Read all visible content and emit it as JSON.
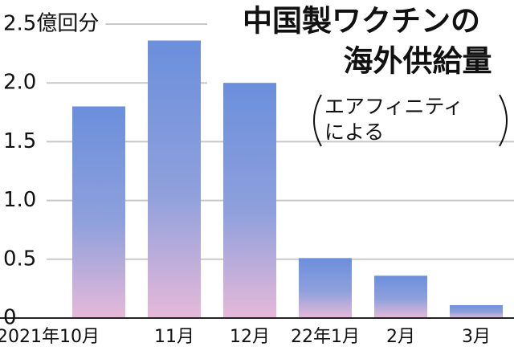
{
  "chart_data": {
    "type": "bar",
    "title_lines": [
      "中国製ワクチンの",
      "海外供給量"
    ],
    "source_lines": [
      "エアフィニティ",
      "による"
    ],
    "categories": [
      "2021年10月",
      "11月",
      "12月",
      "22年1月",
      "2月",
      "3月"
    ],
    "values": [
      1.8,
      2.36,
      2.0,
      0.51,
      0.36,
      0.11
    ],
    "color": "#6b8fdc",
    "ylim": [
      0,
      2.5
    ],
    "yticks": [
      0,
      0.5,
      {
        "value": 1,
        "label": "1.0"
      },
      1.5,
      {
        "value": 2,
        "label": "2.0"
      },
      {
        "value": 2.5,
        "label": "2.5億回分"
      }
    ],
    "grid": true
  }
}
